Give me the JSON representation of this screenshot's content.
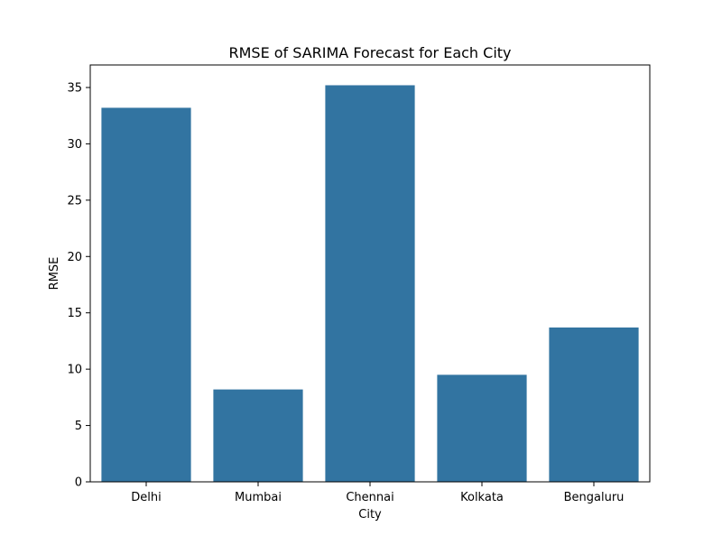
{
  "chart_data": {
    "type": "bar",
    "title": "RMSE of SARIMA Forecast for Each City",
    "xlabel": "City",
    "ylabel": "RMSE",
    "categories": [
      "Delhi",
      "Mumbai",
      "Chennai",
      "Kolkata",
      "Bengaluru"
    ],
    "values": [
      33.2,
      8.2,
      35.2,
      9.5,
      13.7
    ],
    "ylim": [
      0,
      37
    ],
    "yticks": [
      0,
      5,
      10,
      15,
      20,
      25,
      30,
      35
    ],
    "grid": false,
    "bar_color": "#3274a1"
  }
}
